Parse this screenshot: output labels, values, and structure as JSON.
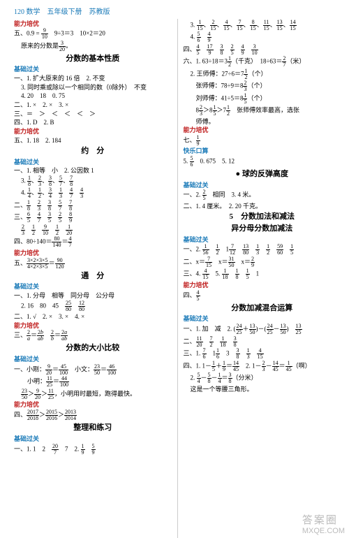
{
  "header": {
    "page": "120",
    "subject": "数学",
    "grade": "五年级下册",
    "edition": "苏教版"
  },
  "left": {
    "s1": {
      "t": "能力培优"
    },
    "l1a": "五、0.9 =",
    "l1b": "　9÷3＝3　10×2＝20",
    "l2": "原来的分数是",
    "c1": {
      "t": "分数的基本性质"
    },
    "s2": {
      "t": "基础过关"
    },
    "l3": "一、1. 扩大原来的 16 倍　2. 不变",
    "l4": "3. 同时乘或除以一个相同的数（0除外）　不变",
    "l5": "4. 20　18　0. 75",
    "l6": "二、1. ×　2. ×　3. ×",
    "l7": "三、＝　＞　＜　＜　＜　＞",
    "l8": "四、1. D　2. B",
    "s3": {
      "t": "能力培优"
    },
    "l9": "五、1. 18　2. 184",
    "c2": {
      "t": "约　分"
    },
    "s4": {
      "t": "基础过关"
    },
    "l10": "一、1. 相等　小　2. 公因数 1",
    "l11a": "二、",
    "l12a": "",
    "l13a": "三、",
    "l14a": "",
    "l15": "四、80÷140＝",
    "s5": {
      "t": "能力培优"
    },
    "l16": "五、",
    "c3": {
      "t": "通　分"
    },
    "s6": {
      "t": "基础过关"
    },
    "l17": "一、1. 分母　相等　同分母　公分母",
    "l18": "2. 16　80　45",
    "l19": "二、1. √　2. ×　3. ×　4. ×",
    "s7": {
      "t": "能力培优"
    },
    "l20": "三、",
    "c4": {
      "t": "分数的大小比较"
    },
    "s8": {
      "t": "基础过关"
    },
    "l21": "一、小刚：",
    "l22a": "　小明：",
    "l23a": "",
    "l23b": "，小明用时最短，跑得最快。",
    "s9": {
      "t": "能力培优"
    },
    "l24": "四、",
    "c5": {
      "t": "整理和练习"
    },
    "s10": {
      "t": "基础过关"
    },
    "l25": "一、1. 1　2　",
    "l25b": "　7　2. "
  },
  "right": {
    "r1": "3. ",
    "r2": "4. ",
    "r3": "四、",
    "r4": "六、1. 63÷18＝3",
    "r4b": "（千克）　18÷63＝",
    "r4c": "（米）",
    "r5": "2. 王师傅：27÷6＝7",
    "r5b": "（个）",
    "r6": "张师傅：78÷9＝8",
    "r6b": "（个）",
    "r7": "刘师傅：41÷5＝8",
    "r7b": "（个）",
    "r8a": "8",
    "r8b": "＞8",
    "r8c": "＞7",
    "r8d": "　张师傅效率最高，选张",
    "r9": "师傅。",
    "sR1": {
      "t": "能力培优"
    },
    "r10": "七、",
    "sR2": {
      "t": "快乐口算"
    },
    "r11": "5. ",
    "r11b": "　0. 675　5. 12",
    "cR1": {
      "t": "● 球的反弹高度"
    },
    "sR3": {
      "t": "基础过关"
    },
    "r12": "一、2. ",
    "r12b": "　相同　3. 4 米。",
    "r13": "二、1. 4 厘米。　2. 20 千克。",
    "cR2a": {
      "t": "5　分数加法和减法"
    },
    "cR2b": {
      "t": "异分母分数加减法"
    },
    "sR4": {
      "t": "基础过关"
    },
    "r14": "一、2. ",
    "r15": "二、x＝",
    "r15b": "　x＝",
    "r15c": "　x＝",
    "r16": "三、4. ",
    "sR5": {
      "t": "能力培优"
    },
    "r17": "四、",
    "cR3": {
      "t": "分数加减混合运算"
    },
    "sR6": {
      "t": "基础过关"
    },
    "r18": "一、1. 加　减　2. ",
    "r19": "二、",
    "r20": "三、1. ",
    "r21": "四、1. 1－",
    "r21b": "　2. 1－",
    "r22": "2. ",
    "r22b": "（啊）",
    "r23": "（分米）",
    "r24": "这是一个等腰三角形。"
  },
  "watermark": {
    "a": "答案圈",
    "b": "MXQE.COM"
  },
  "colors": {
    "red": "#c02020",
    "blue": "#1a7ab8"
  }
}
